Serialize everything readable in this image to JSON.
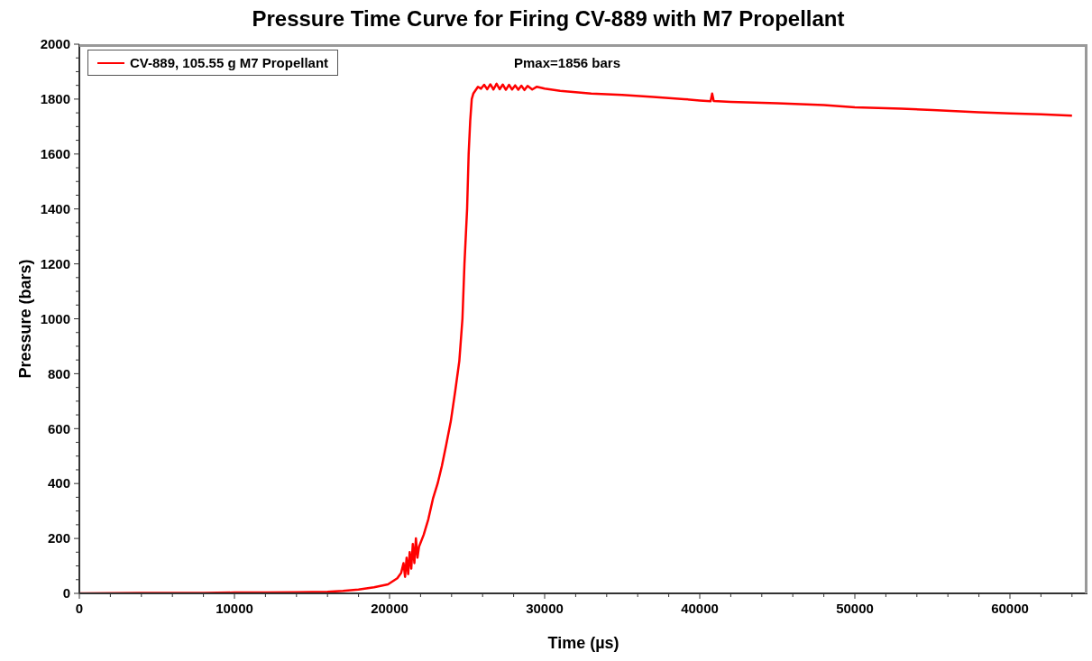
{
  "chart_data": {
    "type": "line",
    "title": "Pressure Time Curve for Firing CV-889 with M7 Propellant",
    "xlabel": "Time (µs)",
    "ylabel": "Pressure (bars)",
    "annotations": [
      "Pmax=1856 bars"
    ],
    "xlim": [
      0,
      65000
    ],
    "ylim": [
      0,
      2000
    ],
    "xticks": [
      0,
      {
        "value": 2000,
        "label": null
      },
      {
        "value": 4000,
        "label": null
      },
      {
        "value": 6000,
        "label": null
      },
      {
        "value": 8000,
        "label": null
      },
      10000,
      {
        "value": 12000,
        "label": null
      },
      {
        "value": 14000,
        "label": null
      },
      {
        "value": 16000,
        "label": null
      },
      {
        "value": 18000,
        "label": null
      },
      20000,
      {
        "value": 22000,
        "label": null
      },
      {
        "value": 24000,
        "label": null
      },
      {
        "value": 26000,
        "label": null
      },
      {
        "value": 28000,
        "label": null
      },
      30000,
      {
        "value": 32000,
        "label": null
      },
      {
        "value": 34000,
        "label": null
      },
      {
        "value": 36000,
        "label": null
      },
      {
        "value": 38000,
        "label": null
      },
      40000,
      {
        "value": 42000,
        "label": null
      },
      {
        "value": 44000,
        "label": null
      },
      {
        "value": 46000,
        "label": null
      },
      {
        "value": 48000,
        "label": null
      },
      50000,
      {
        "value": 52000,
        "label": null
      },
      {
        "value": 54000,
        "label": null
      },
      {
        "value": 56000,
        "label": null
      },
      {
        "value": 58000,
        "label": null
      },
      60000,
      {
        "value": 62000,
        "label": null
      },
      {
        "value": 64000,
        "label": null
      }
    ],
    "yticks": [
      0,
      {
        "value": 50,
        "label": null
      },
      {
        "value": 100,
        "label": null
      },
      {
        "value": 150,
        "label": null
      },
      200,
      {
        "value": 250,
        "label": null
      },
      {
        "value": 300,
        "label": null
      },
      {
        "value": 350,
        "label": null
      },
      400,
      {
        "value": 450,
        "label": null
      },
      {
        "value": 500,
        "label": null
      },
      {
        "value": 550,
        "label": null
      },
      600,
      {
        "value": 650,
        "label": null
      },
      {
        "value": 700,
        "label": null
      },
      {
        "value": 750,
        "label": null
      },
      800,
      {
        "value": 850,
        "label": null
      },
      {
        "value": 900,
        "label": null
      },
      {
        "value": 950,
        "label": null
      },
      1000,
      {
        "value": 1050,
        "label": null
      },
      {
        "value": 1100,
        "label": null
      },
      {
        "value": 1150,
        "label": null
      },
      1200,
      {
        "value": 1250,
        "label": null
      },
      {
        "value": 1300,
        "label": null
      },
      {
        "value": 1350,
        "label": null
      },
      1400,
      {
        "value": 1450,
        "label": null
      },
      {
        "value": 1500,
        "label": null
      },
      {
        "value": 1550,
        "label": null
      },
      1600,
      {
        "value": 1650,
        "label": null
      },
      {
        "value": 1700,
        "label": null
      },
      {
        "value": 1750,
        "label": null
      },
      1800,
      {
        "value": 1850,
        "label": null
      },
      {
        "value": 1900,
        "label": null
      },
      {
        "value": 1950,
        "label": null
      },
      2000
    ],
    "legend": "top left",
    "marker": "none",
    "line_style": "solid",
    "series": [
      {
        "name": "CV-889, 105.55 g M7 Propellant",
        "color": "#ff0000",
        "x": [
          0,
          2000,
          4000,
          6000,
          8000,
          10000,
          12000,
          14000,
          16000,
          17000,
          18000,
          19000,
          19900,
          20500,
          20750,
          20900,
          21000,
          21100,
          21200,
          21300,
          21400,
          21500,
          21600,
          21700,
          21800,
          21900,
          22200,
          22500,
          22800,
          23100,
          23370,
          23650,
          23950,
          24240,
          24500,
          24700,
          24830,
          25000,
          25100,
          25200,
          25300,
          25400,
          25520,
          25700,
          25900,
          26100,
          26300,
          26500,
          26700,
          26900,
          27100,
          27300,
          27500,
          27700,
          27900,
          28100,
          28300,
          28500,
          28700,
          28900,
          29200,
          29500,
          30000,
          31000,
          32000,
          33000,
          35000,
          37000,
          39000,
          40000,
          40700,
          40800,
          40900,
          42000,
          45000,
          48000,
          50000,
          53000,
          55000,
          58000,
          60000,
          62000,
          64000
        ],
        "values": [
          0,
          1,
          2,
          2,
          2,
          3,
          3,
          4,
          6,
          9,
          14,
          22,
          33,
          55,
          75,
          110,
          60,
          130,
          70,
          150,
          90,
          180,
          110,
          200,
          130,
          170,
          213,
          270,
          345,
          400,
          463,
          540,
          627,
          739,
          847,
          1000,
          1200,
          1400,
          1600,
          1720,
          1800,
          1820,
          1830,
          1845,
          1838,
          1852,
          1836,
          1854,
          1835,
          1856,
          1836,
          1853,
          1834,
          1852,
          1835,
          1850,
          1834,
          1849,
          1833,
          1848,
          1835,
          1845,
          1838,
          1830,
          1825,
          1820,
          1815,
          1808,
          1800,
          1795,
          1792,
          1820,
          1793,
          1790,
          1785,
          1778,
          1770,
          1765,
          1760,
          1752,
          1748,
          1745,
          1740
        ]
      }
    ]
  }
}
